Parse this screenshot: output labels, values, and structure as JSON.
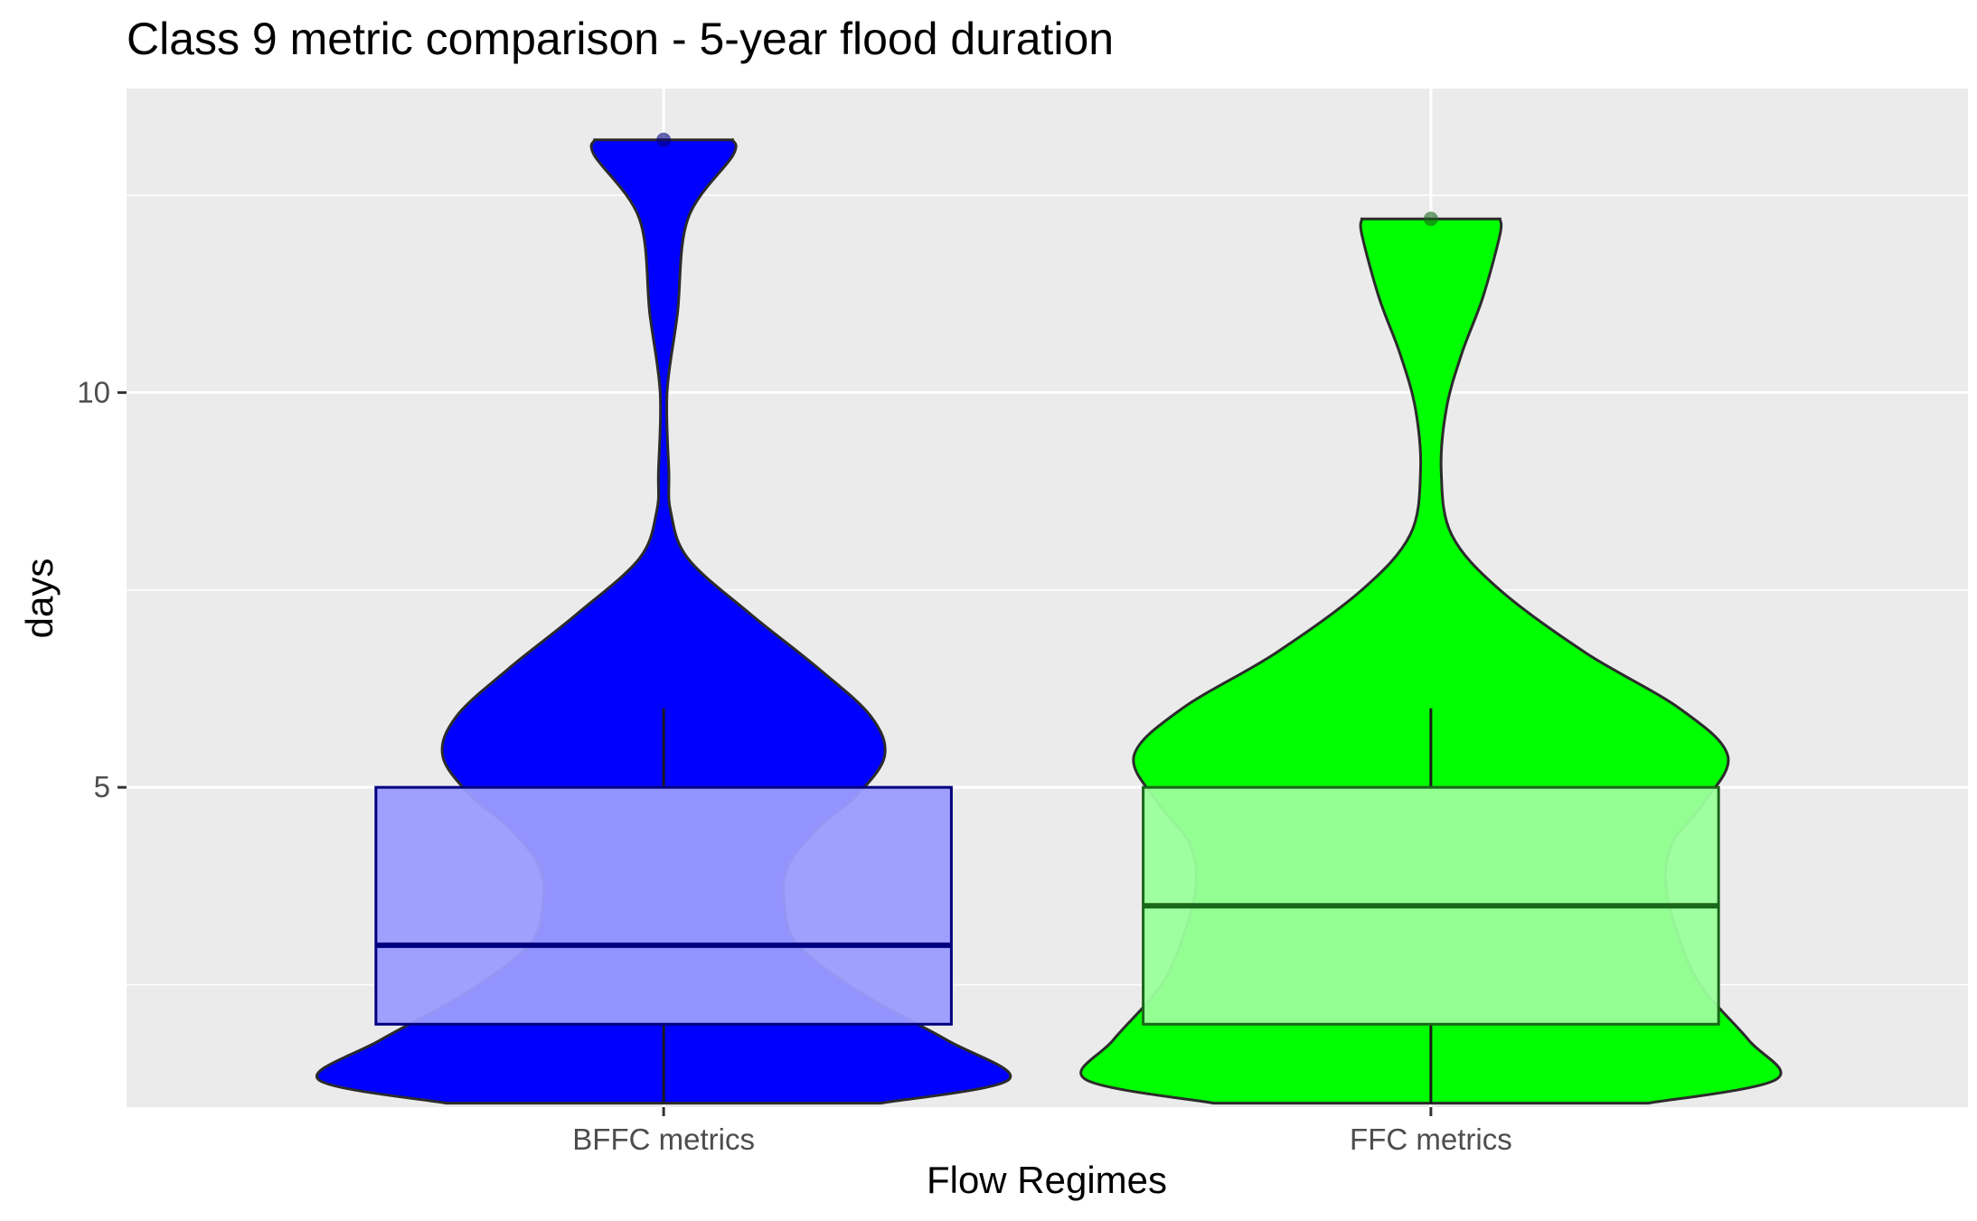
{
  "chart_data": {
    "type": "violin",
    "title": "Class 9 metric comparison - 5-year flood duration",
    "xlabel": "Flow Regimes",
    "ylabel": "days",
    "ylim": [
      0.95,
      13.85
    ],
    "yticks": [
      5,
      10
    ],
    "y_minor_gridlines": [
      2.5,
      7.5,
      12.5
    ],
    "grid": true,
    "legend": "none",
    "categories": [
      "BFFC metrics",
      "FFC metrics"
    ],
    "series": [
      {
        "category": "BFFC metrics",
        "violin_color": "#0000ff",
        "box_fill": "#9b9bff",
        "box_stroke": "#00007f",
        "range": [
          1,
          13.2
        ],
        "density_profile": [
          [
            1.0,
            0.63
          ],
          [
            1.3,
            1.0
          ],
          [
            1.8,
            0.82
          ],
          [
            2.4,
            0.57
          ],
          [
            3.0,
            0.39
          ],
          [
            3.5,
            0.35
          ],
          [
            4.0,
            0.36
          ],
          [
            4.5,
            0.45
          ],
          [
            4.9,
            0.56
          ],
          [
            5.4,
            0.64
          ],
          [
            5.9,
            0.6
          ],
          [
            6.5,
            0.45
          ],
          [
            7.2,
            0.25
          ],
          [
            7.9,
            0.07
          ],
          [
            8.5,
            0.02
          ],
          [
            9.0,
            0.015
          ],
          [
            10.0,
            0.01
          ],
          [
            11.0,
            0.04
          ],
          [
            12.2,
            0.07
          ],
          [
            13.0,
            0.2
          ],
          [
            13.2,
            0.2
          ]
        ],
        "box": {
          "q1": 2,
          "median": 3,
          "q3": 5,
          "whisker_low": 1,
          "whisker_high": 6
        },
        "outliers": [
          13.2
        ]
      },
      {
        "category": "FFC metrics",
        "violin_color": "#00ff00",
        "box_fill": "#9bff9b",
        "box_stroke": "#1a661a",
        "range": [
          1,
          12.2
        ],
        "density_profile": [
          [
            1.0,
            0.63
          ],
          [
            1.3,
            1.0
          ],
          [
            1.8,
            0.92
          ],
          [
            2.5,
            0.78
          ],
          [
            3.2,
            0.71
          ],
          [
            3.8,
            0.68
          ],
          [
            4.3,
            0.7
          ],
          [
            4.8,
            0.79
          ],
          [
            5.4,
            0.86
          ],
          [
            6.0,
            0.72
          ],
          [
            6.7,
            0.45
          ],
          [
            7.5,
            0.2
          ],
          [
            8.2,
            0.06
          ],
          [
            9.0,
            0.03
          ],
          [
            9.8,
            0.045
          ],
          [
            10.5,
            0.09
          ],
          [
            11.2,
            0.15
          ],
          [
            12.0,
            0.2
          ],
          [
            12.2,
            0.2
          ]
        ],
        "box": {
          "q1": 2,
          "median": 3.5,
          "q3": 5,
          "whisker_low": 1,
          "whisker_high": 6
        },
        "outliers": [
          12.2
        ]
      }
    ]
  }
}
